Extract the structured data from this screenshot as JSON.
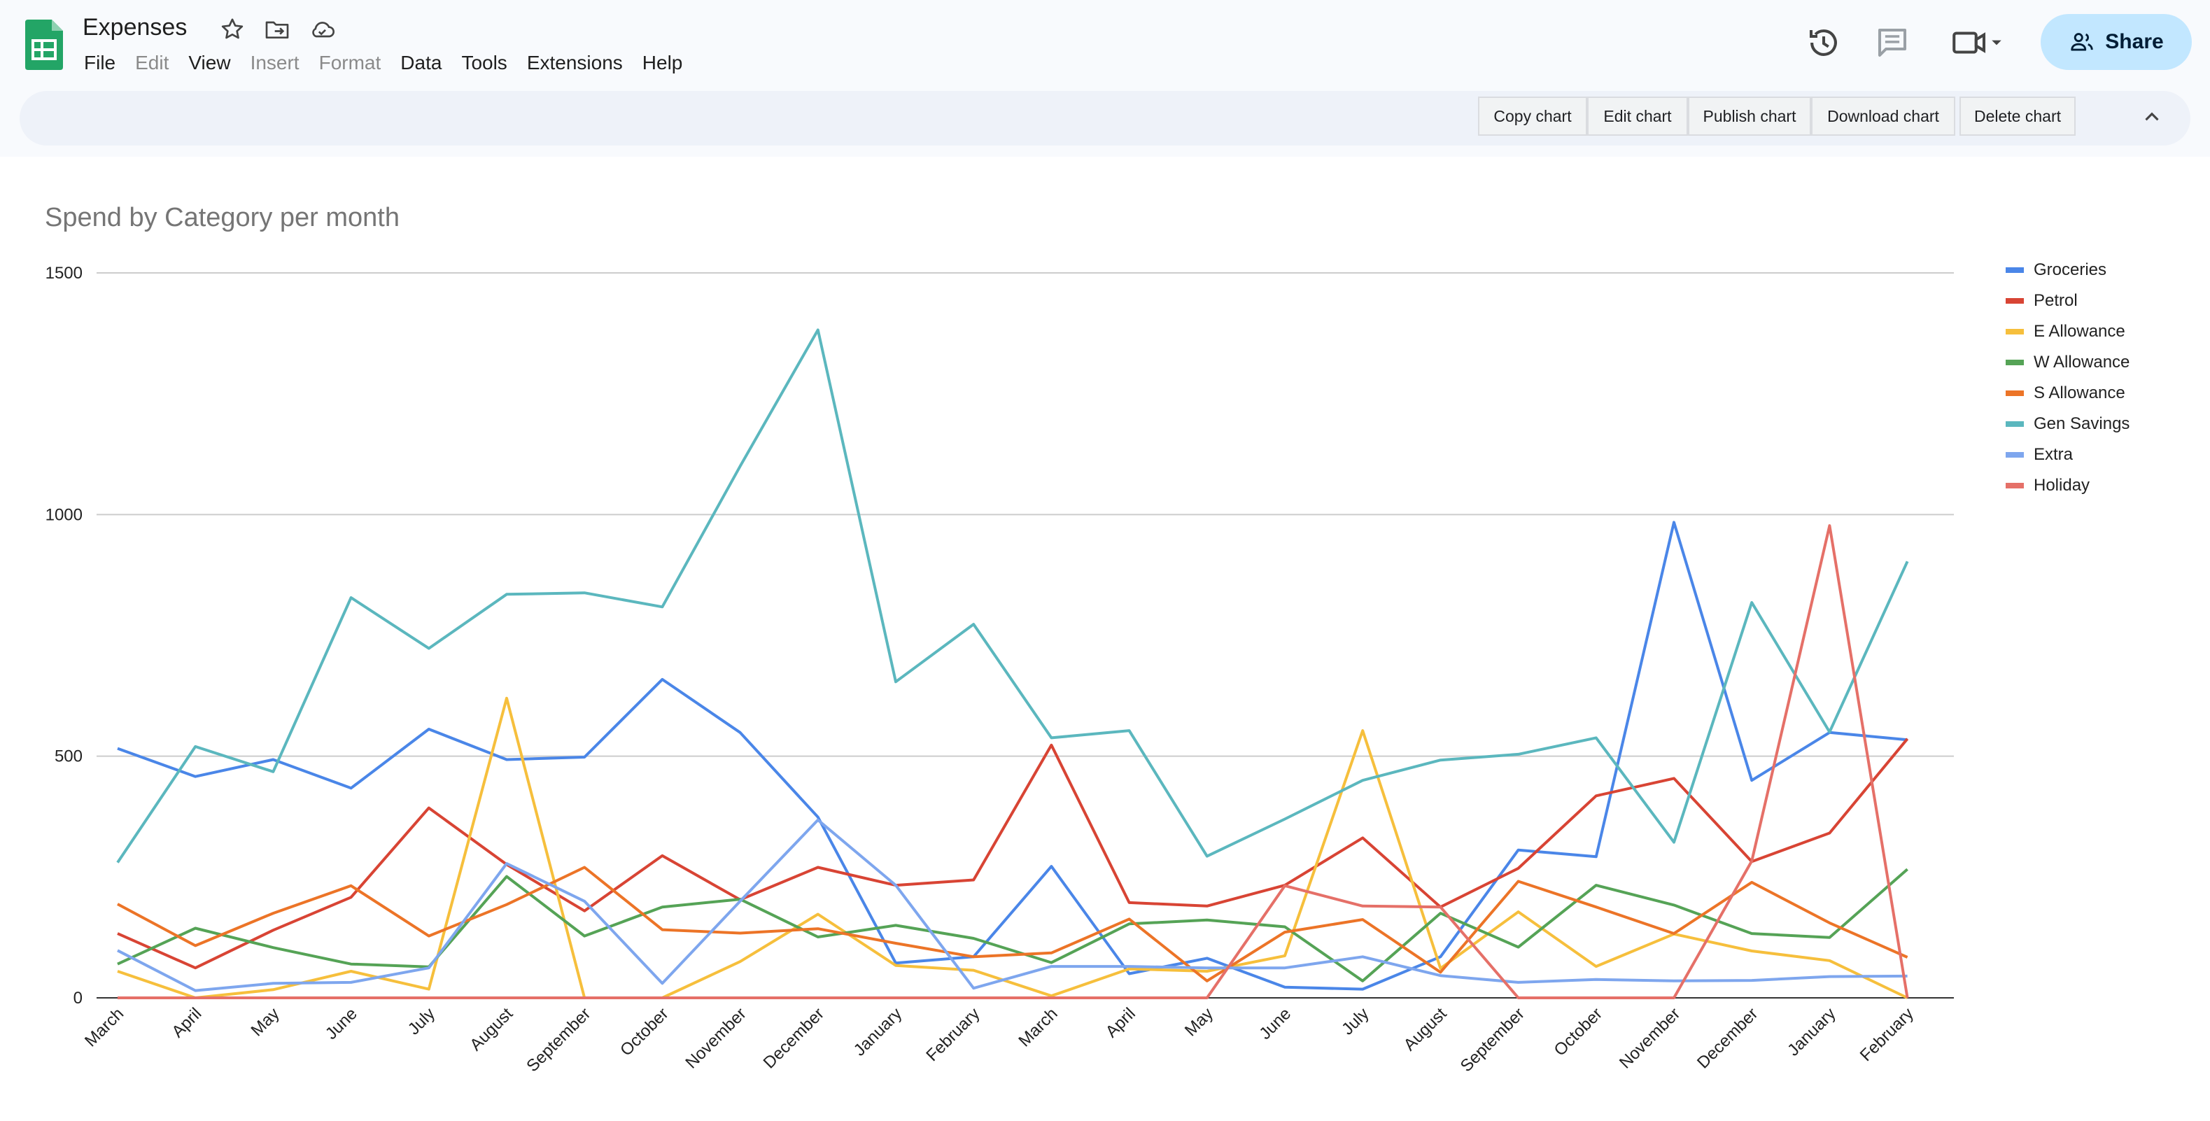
{
  "app": {
    "title": "Expenses",
    "menu": [
      {
        "label": "File",
        "disabled": false
      },
      {
        "label": "Edit",
        "disabled": true
      },
      {
        "label": "View",
        "disabled": false
      },
      {
        "label": "Insert",
        "disabled": true
      },
      {
        "label": "Format",
        "disabled": true
      },
      {
        "label": "Data",
        "disabled": false
      },
      {
        "label": "Tools",
        "disabled": false
      },
      {
        "label": "Extensions",
        "disabled": false
      },
      {
        "label": "Help",
        "disabled": false
      }
    ],
    "share_label": "Share"
  },
  "toolbar": {
    "copy": "Copy chart",
    "edit": "Edit chart",
    "publish": "Publish chart",
    "download": "Download chart",
    "delete": "Delete chart"
  },
  "chart_data": {
    "type": "line",
    "title": "Spend by Category per month",
    "xlabel": "",
    "ylabel": "",
    "ylim": [
      0,
      1500
    ],
    "yticks": [
      0,
      500,
      1000,
      1500
    ],
    "grid": true,
    "legend_position": "right",
    "categories": [
      "March",
      "April",
      "May",
      "June",
      "July",
      "August",
      "September",
      "October",
      "November",
      "December",
      "January",
      "February",
      "March",
      "April",
      "May",
      "June",
      "July",
      "August",
      "September",
      "October",
      "November",
      "December",
      "January",
      "February"
    ],
    "series": [
      {
        "name": "Groceries",
        "color": "#4a86e8",
        "values": [
          516,
          458,
          493,
          434,
          556,
          493,
          498,
          659,
          549,
          374,
          72,
          85,
          272,
          50,
          82,
          22,
          18,
          85,
          306,
          292,
          984,
          450,
          549,
          534
        ]
      },
      {
        "name": "Petrol",
        "color": "#d84434",
        "values": [
          133,
          62,
          140,
          208,
          393,
          276,
          180,
          294,
          203,
          270,
          233,
          244,
          523,
          197,
          190,
          233,
          331,
          188,
          268,
          418,
          454,
          282,
          341,
          536
        ]
      },
      {
        "name": "E Allowance",
        "color": "#f6bf3c",
        "values": [
          55,
          0,
          17,
          55,
          18,
          620,
          0,
          0,
          75,
          173,
          67,
          57,
          4,
          60,
          55,
          87,
          553,
          61,
          178,
          65,
          132,
          97,
          77,
          0
        ]
      },
      {
        "name": "W Allowance",
        "color": "#55a356",
        "values": [
          70,
          144,
          104,
          70,
          64,
          251,
          128,
          188,
          204,
          126,
          150,
          123,
          73,
          153,
          161,
          147,
          35,
          175,
          105,
          233,
          192,
          133,
          125,
          266
        ]
      },
      {
        "name": "S Allowance",
        "color": "#ec7427",
        "values": [
          194,
          108,
          175,
          232,
          128,
          193,
          270,
          141,
          134,
          143,
          113,
          85,
          93,
          163,
          35,
          136,
          162,
          53,
          241,
          188,
          133,
          239,
          155,
          84
        ]
      },
      {
        "name": "Gen Savings",
        "color": "#5bb7be",
        "values": [
          280,
          520,
          468,
          828,
          723,
          835,
          838,
          809,
          1100,
          1382,
          654,
          773,
          538,
          553,
          293,
          370,
          450,
          492,
          504,
          538,
          322,
          818,
          550,
          903
        ]
      },
      {
        "name": "Extra",
        "color": "#7ea6ee",
        "values": [
          98,
          15,
          30,
          32,
          62,
          278,
          200,
          30,
          200,
          368,
          233,
          20,
          65,
          65,
          62,
          62,
          85,
          46,
          32,
          38,
          35,
          36,
          44,
          45
        ]
      },
      {
        "name": "Holiday",
        "color": "#e57068",
        "values": [
          0,
          0,
          0,
          0,
          0,
          0,
          0,
          0,
          0,
          0,
          0,
          0,
          0,
          0,
          0,
          232,
          190,
          188,
          0,
          0,
          0,
          283,
          977,
          0
        ]
      }
    ]
  }
}
